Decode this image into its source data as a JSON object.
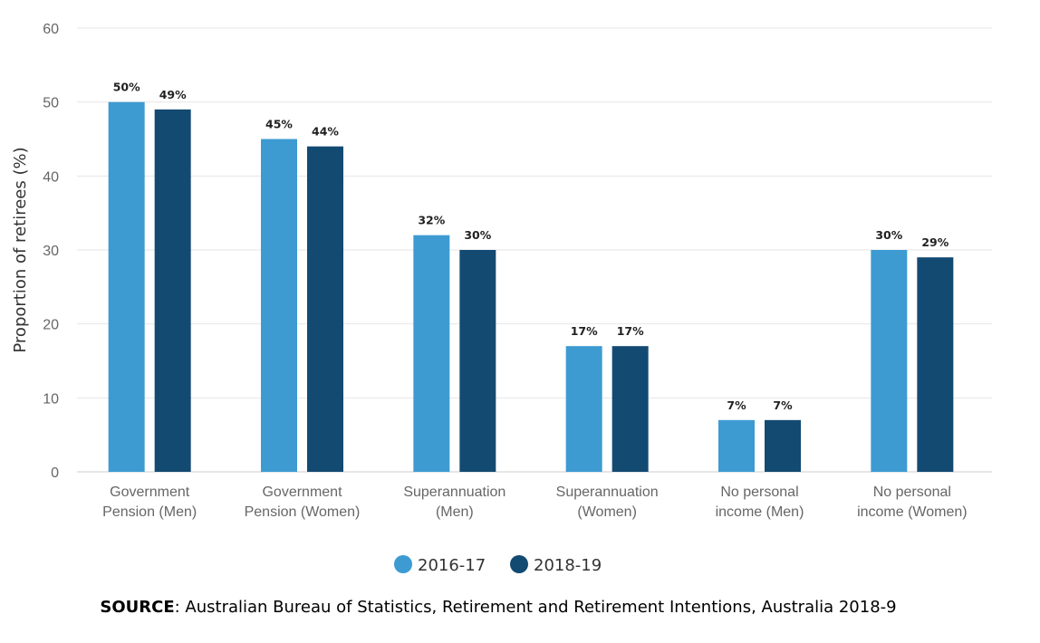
{
  "chart_data": {
    "type": "bar",
    "title": "",
    "xlabel": "",
    "ylabel": "Proportion of retirees (%)",
    "ylim": [
      0,
      60
    ],
    "yticks": [
      "0",
      "10",
      "20",
      "30",
      "40",
      "50",
      "60"
    ],
    "grid": true,
    "legend_position": "bottom",
    "categories": [
      [
        "Government",
        "Pension (Men)"
      ],
      [
        "Government",
        "Pension (Women)"
      ],
      [
        "Superannuation",
        "(Men)"
      ],
      [
        "Superannuation",
        "(Women)"
      ],
      [
        "No personal",
        "income (Men)"
      ],
      [
        "No personal",
        "income (Women)"
      ]
    ],
    "series": [
      {
        "name": "2016-17",
        "color": "#3d9bd2",
        "values": [
          50,
          45,
          32,
          17,
          7,
          30
        ],
        "labels": [
          "50%",
          "45%",
          "32%",
          "17%",
          "7%",
          "30%"
        ]
      },
      {
        "name": "2018-19",
        "color": "#134a72",
        "values": [
          49,
          44,
          30,
          17,
          7,
          29
        ],
        "labels": [
          "49%",
          "44%",
          "30%",
          "17%",
          "7%",
          "29%"
        ]
      }
    ]
  },
  "source": {
    "label": "SOURCE",
    "text": ": Australian Bureau of Statistics, Retirement and Retirement Intentions, Australia 2018-9"
  }
}
